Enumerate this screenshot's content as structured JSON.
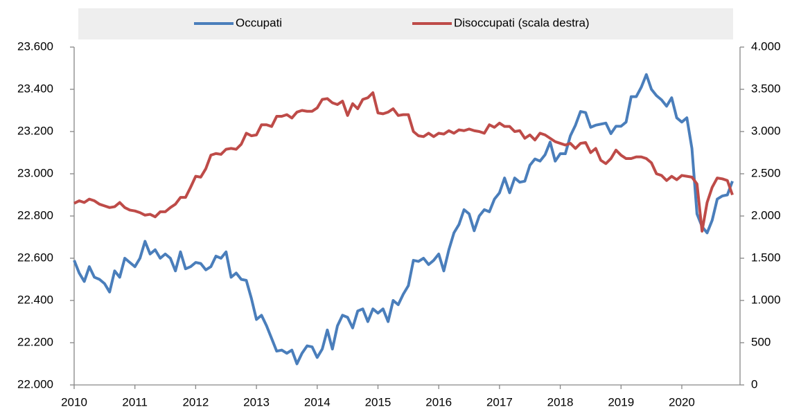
{
  "chart_data": {
    "type": "line",
    "categories": [
      "2010",
      null,
      null,
      null,
      null,
      null,
      null,
      null,
      null,
      null,
      null,
      null,
      "2011",
      null,
      null,
      null,
      null,
      null,
      null,
      null,
      null,
      null,
      null,
      null,
      "2012",
      null,
      null,
      null,
      null,
      null,
      null,
      null,
      null,
      null,
      null,
      null,
      "2013",
      null,
      null,
      null,
      null,
      null,
      null,
      null,
      null,
      null,
      null,
      null,
      "2014",
      null,
      null,
      null,
      null,
      null,
      null,
      null,
      null,
      null,
      null,
      null,
      "2015",
      null,
      null,
      null,
      null,
      null,
      null,
      null,
      null,
      null,
      null,
      null,
      "2016",
      null,
      null,
      null,
      null,
      null,
      null,
      null,
      null,
      null,
      null,
      null,
      "2017",
      null,
      null,
      null,
      null,
      null,
      null,
      null,
      null,
      null,
      null,
      null,
      "2018",
      null,
      null,
      null,
      null,
      null,
      null,
      null,
      null,
      null,
      null,
      null,
      "2019",
      null,
      null,
      null,
      null,
      null,
      null,
      null,
      null,
      null,
      null,
      null,
      "2020",
      null,
      null,
      null,
      null,
      null,
      null,
      null,
      null,
      null,
      null
    ],
    "series": [
      {
        "name": "Occupati",
        "color": "#4a7ebb",
        "axis": "y",
        "values": [
          22590,
          22530,
          22490,
          22560,
          22510,
          22500,
          22480,
          22440,
          22540,
          22510,
          22600,
          22580,
          22560,
          22600,
          22680,
          22620,
          22640,
          22600,
          22620,
          22600,
          22540,
          22630,
          22550,
          22560,
          22580,
          22575,
          22545,
          22560,
          22610,
          22600,
          22630,
          22510,
          22530,
          22500,
          22495,
          22410,
          22310,
          22330,
          22280,
          22220,
          22160,
          22165,
          22150,
          22165,
          22100,
          22150,
          22185,
          22180,
          22130,
          22170,
          22260,
          22170,
          22280,
          22330,
          22320,
          22270,
          22350,
          22360,
          22300,
          22360,
          22340,
          22360,
          22300,
          22400,
          22380,
          22430,
          22470,
          22590,
          22585,
          22600,
          22570,
          22590,
          22620,
          22540,
          22640,
          22720,
          22760,
          22830,
          22810,
          22730,
          22800,
          22830,
          22820,
          22880,
          22910,
          22980,
          22910,
          22980,
          22960,
          22965,
          23040,
          23070,
          23060,
          23090,
          23150,
          23060,
          23095,
          23095,
          23180,
          23230,
          23295,
          23290,
          23220,
          23230,
          23235,
          23240,
          23190,
          23225,
          23225,
          23245,
          23365,
          23365,
          23410,
          23470,
          23400,
          23370,
          23350,
          23320,
          23360,
          23265,
          23245,
          23265,
          23120,
          22810,
          22750,
          22720,
          22780,
          22880,
          22895,
          22900,
          22965
        ]
      },
      {
        "name": "Disoccupati (scala destra)",
        "color": "#be4b48",
        "axis": "y2",
        "values": [
          2150,
          2180,
          2160,
          2200,
          2180,
          2140,
          2120,
          2100,
          2110,
          2160,
          2100,
          2070,
          2060,
          2040,
          2010,
          2020,
          1990,
          2050,
          2050,
          2100,
          2140,
          2220,
          2220,
          2340,
          2470,
          2460,
          2560,
          2720,
          2740,
          2730,
          2790,
          2800,
          2790,
          2850,
          2980,
          2950,
          2960,
          3080,
          3080,
          3060,
          3180,
          3180,
          3200,
          3160,
          3230,
          3250,
          3240,
          3240,
          3280,
          3380,
          3390,
          3340,
          3320,
          3360,
          3190,
          3330,
          3270,
          3380,
          3400,
          3460,
          3220,
          3210,
          3230,
          3270,
          3190,
          3200,
          3200,
          3000,
          2950,
          2940,
          2980,
          2940,
          2980,
          2970,
          3010,
          2980,
          3020,
          3010,
          3030,
          3010,
          3000,
          2980,
          3080,
          3050,
          3100,
          3060,
          3060,
          3000,
          3010,
          2920,
          2960,
          2900,
          2980,
          2960,
          2920,
          2880,
          2860,
          2840,
          2860,
          2800,
          2860,
          2870,
          2750,
          2800,
          2660,
          2620,
          2680,
          2780,
          2720,
          2680,
          2680,
          2700,
          2700,
          2680,
          2630,
          2500,
          2480,
          2420,
          2470,
          2430,
          2480,
          2470,
          2460,
          2380,
          1820,
          2160,
          2340,
          2450,
          2440,
          2420,
          2250
        ]
      }
    ],
    "ylim": [
      22000,
      23600
    ],
    "yticks": [
      {
        "value": 22000,
        "label": "22.000"
      },
      {
        "value": 22200,
        "label": "22.200"
      },
      {
        "value": 22400,
        "label": "22.400"
      },
      {
        "value": 22600,
        "label": "22.600"
      },
      {
        "value": 22800,
        "label": "22.800"
      },
      {
        "value": 23000,
        "label": "23.000"
      },
      {
        "value": 23200,
        "label": "23.200"
      },
      {
        "value": 23400,
        "label": "23.400"
      },
      {
        "value": 23600,
        "label": "23.600"
      }
    ],
    "y2lim": [
      0,
      4000
    ],
    "y2ticks": [
      0,
      500,
      {
        "value": 1000,
        "label": "1.000"
      },
      {
        "value": 1500,
        "label": "1.500"
      },
      {
        "value": 2000,
        "label": "2.000"
      },
      {
        "value": 2500,
        "label": "2.500"
      },
      {
        "value": 3000,
        "label": "3.000"
      },
      {
        "value": 3500,
        "label": "3.500"
      },
      {
        "value": 4000,
        "label": "4.000"
      }
    ],
    "grid": false,
    "legend": "top"
  }
}
